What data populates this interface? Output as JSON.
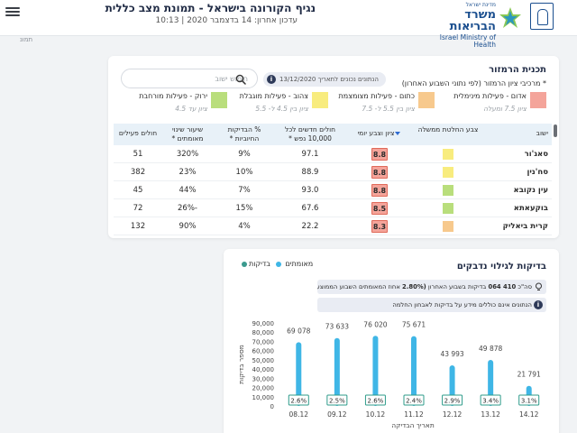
{
  "header": {
    "title": "נגיף הקורונה בישראל - תמונת מצב כללית",
    "subtitle": "עדכון אחרון: 14 בדצמבר 2020 | 10:13",
    "logo": {
      "small": "מדינת ישראל",
      "main": "משרד הבריאות",
      "english": "Israel Ministry of Health"
    }
  },
  "left_stub": "תמונ",
  "plan": {
    "title": "תכנית הרמזור",
    "subtitle": "* מרכיבי ציון הרמזור (לפי נתוני השבוע האחרון)",
    "update_badge": "הנתונים נכונים לתאריך 13/12/2020",
    "search_placeholder": "חיפוש ישוב",
    "legend": [
      {
        "label": "אדום - פעילות מינימלית",
        "range": "ציון 7.5 ומעלה",
        "color": "#f4a49a"
      },
      {
        "label": "כתום - פעילות מצומצמת",
        "range": "ציון בין 5.5 ל- 7.5",
        "color": "#f7c98d"
      },
      {
        "label": "צהוב - פעילות מוגבלת",
        "range": "ציון בין 4.5 ל- 5.5",
        "color": "#f8ec7e"
      },
      {
        "label": "ירוק - פעילות מורחבת",
        "range": "ציון עד 4.5",
        "color": "#b9de7c"
      }
    ],
    "columns": {
      "city": "ישוב",
      "gov_color": "צבע החלטת ממשלה",
      "grade": "ציון וצבע יומי",
      "new_cases": "חולים חדשים לכל 10,000 נפש *",
      "positive": "% הבדיקות החיוביות *",
      "change": "שיעור שינוי מאומתים *",
      "active": "חולים פעילים"
    },
    "rows": [
      {
        "city": "סאג'ור",
        "gov_color": "#f8ec7e",
        "grade": "8.8",
        "grade_color": "#f4a49a",
        "new_cases": "97.1",
        "positive": "9%",
        "change": "320%",
        "active": "51"
      },
      {
        "city": "סח'נין",
        "gov_color": "#f8ec7e",
        "grade": "8.8",
        "grade_color": "#f4a49a",
        "new_cases": "88.9",
        "positive": "10%",
        "change": "23%",
        "active": "382"
      },
      {
        "city": "עין נקובא",
        "gov_color": "#b9de7c",
        "grade": "8.8",
        "grade_color": "#f4a49a",
        "new_cases": "93.0",
        "positive": "7%",
        "change": "44%",
        "active": "45"
      },
      {
        "city": "בוקעאתא",
        "gov_color": "#b9de7c",
        "grade": "8.5",
        "grade_color": "#f4a49a",
        "new_cases": "67.6",
        "positive": "15%",
        "change": "-26%",
        "active": "72"
      },
      {
        "city": "קרית ביאליק",
        "gov_color": "#f7c98d",
        "grade": "8.3",
        "grade_color": "#f4a49a",
        "new_cases": "22.2",
        "positive": "4%",
        "change": "90%",
        "active": "132"
      }
    ]
  },
  "tests": {
    "title": "בדיקות לגילוי נדבקים",
    "legend_tests": "בדיקות",
    "legend_confirmed": "מאומתים",
    "info_line1_prefix": "סה\"כ",
    "info_line1_value": "410 064",
    "info_line1_mid": "בדיקות בשבוע האחרון",
    "info_line1_pct": "(2.80%",
    "info_line1_suffix": "אחוז המאומתים השבוע הממוצע)",
    "info_line2": "הנתונים אינם כוללים מידע על בדיקות לאבחון החלמה"
  },
  "colors": {
    "tests_bar": "#3fb6e6",
    "confirmed": "#3b9a8e",
    "accent_dark": "#1f2a44"
  },
  "chart_data": {
    "type": "bar",
    "title": "בדיקות לגילוי נדבקים",
    "xlabel": "תאריך הבדיקה",
    "ylabel": "מספר בדיקות",
    "ylim": [
      0,
      90000
    ],
    "yticks": [
      "0",
      "10,000",
      "20,000",
      "30,000",
      "40,000",
      "50,000",
      "60,000",
      "70,000",
      "80,000",
      "90,000"
    ],
    "categories": [
      "08.12",
      "09.12",
      "10.12",
      "11.12",
      "12.12",
      "13.12",
      "14.12"
    ],
    "series": [
      {
        "name": "בדיקות",
        "values": [
          69078,
          73633,
          76020,
          75671,
          43993,
          49878,
          21791
        ],
        "labels": [
          "69 078",
          "73 633",
          "76 020",
          "75 671",
          "43 993",
          "49 878",
          "21 791"
        ]
      },
      {
        "name": "מאומתים",
        "values": [
          2.6,
          2.5,
          2.6,
          2.4,
          2.9,
          3.4,
          3.1
        ],
        "labels": [
          "2.6%",
          "2.5%",
          "2.6%",
          "2.4%",
          "2.9%",
          "3.4%",
          "3.1%"
        ]
      }
    ],
    "grid": false,
    "legend_position": "top-left"
  }
}
